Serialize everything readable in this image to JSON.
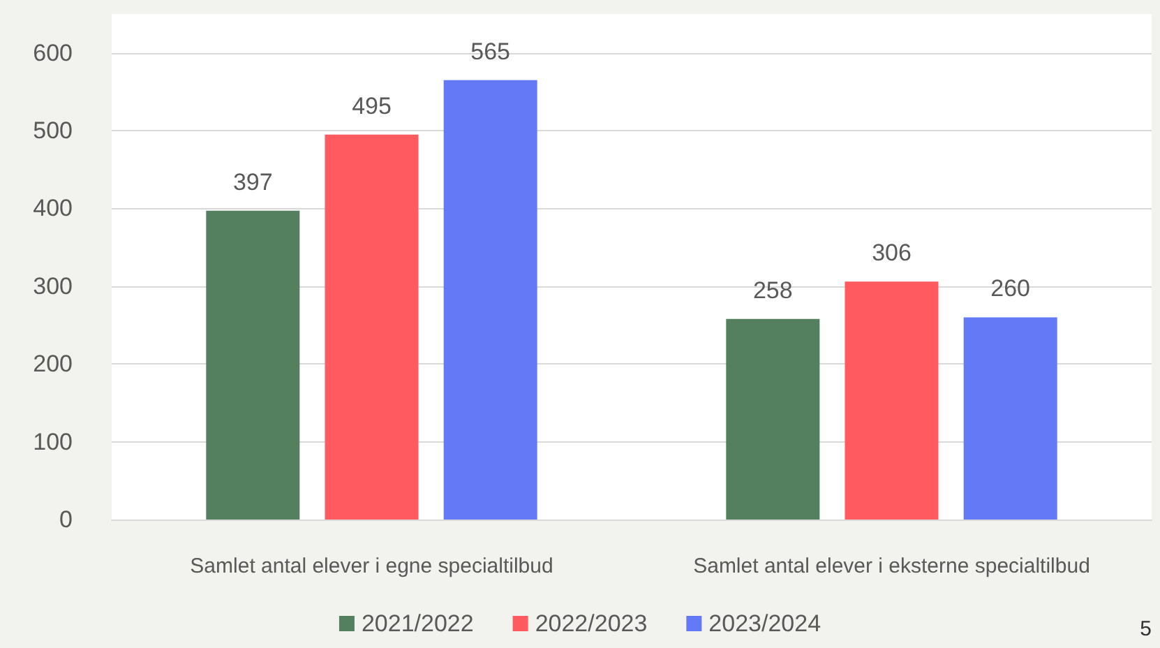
{
  "chart_data": {
    "type": "bar",
    "categories": [
      "Samlet antal elever i egne specialtilbud",
      "Samlet antal elever i eksterne specialtilbud"
    ],
    "series": [
      {
        "name": "2021/2022",
        "color": "#548060",
        "values": [
          397,
          258
        ]
      },
      {
        "name": "2022/2023",
        "color": "#ff5a5f",
        "values": [
          495,
          306
        ]
      },
      {
        "name": "2023/2024",
        "color": "#6479f5",
        "values": [
          565,
          260
        ]
      }
    ],
    "ylim": [
      0,
      650
    ],
    "yticks": [
      0,
      100,
      200,
      300,
      400,
      500,
      600
    ],
    "grid": "y",
    "legend": "bottom",
    "data_labels": true,
    "annotations": [
      "5"
    ]
  }
}
